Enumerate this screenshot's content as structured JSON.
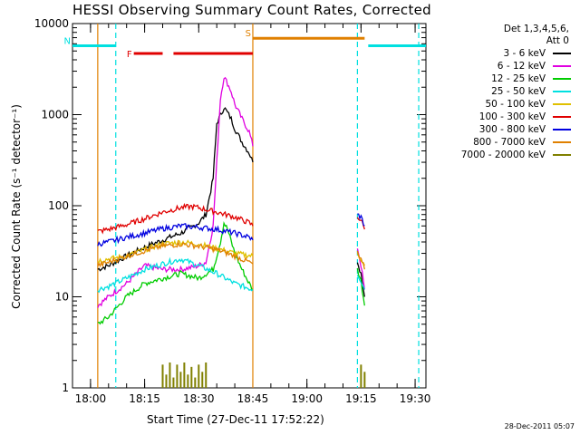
{
  "chart_data": {
    "type": "line",
    "title": "HESSI Observing Summary Count Rates, Corrected",
    "xlabel": "Start Time (27-Dec-11 17:52:22)",
    "ylabel": "Corrected Count Rate (s⁻¹ detector⁻¹)",
    "y_scale": "log",
    "ylim": [
      1,
      10000
    ],
    "xlim": [
      "17:55",
      "19:33"
    ],
    "x_ticks": [
      "18:00",
      "18:15",
      "18:30",
      "18:45",
      "19:00",
      "19:15",
      "19:30"
    ],
    "y_ticks": [
      "1",
      "10",
      "100",
      "1000",
      "10000"
    ],
    "legend": {
      "placement": "right",
      "title_line1": "Det 1,3,4,5,6,",
      "title_line2": "Att 0"
    },
    "series": [
      {
        "name": "3 - 6 keV",
        "color": "#000000",
        "x": [
          "18:02",
          "18:05",
          "18:10",
          "18:15",
          "18:20",
          "18:25",
          "18:28",
          "18:30",
          "18:32",
          "18:34",
          "18:35",
          "18:37",
          "18:38",
          "18:39",
          "18:40",
          "18:42",
          "18:44",
          "18:45",
          "19:14",
          "19:15",
          "19:16"
        ],
        "y": [
          20,
          22,
          28,
          35,
          42,
          50,
          58,
          65,
          80,
          200,
          800,
          1200,
          1050,
          900,
          700,
          500,
          380,
          300,
          25,
          18,
          10
        ]
      },
      {
        "name": "6 - 12 keV",
        "color": "#e000e0",
        "x": [
          "18:02",
          "18:05",
          "18:10",
          "18:15",
          "18:20",
          "18:25",
          "18:28",
          "18:30",
          "18:32",
          "18:34",
          "18:35",
          "18:36",
          "18:37",
          "18:38",
          "18:39",
          "18:40",
          "18:42",
          "18:44",
          "18:45",
          "19:14",
          "19:15",
          "19:16"
        ],
        "y": [
          8,
          10,
          14,
          22,
          20,
          20,
          21,
          22,
          24,
          60,
          300,
          1500,
          2600,
          2200,
          1800,
          1300,
          900,
          650,
          450,
          35,
          22,
          12
        ]
      },
      {
        "name": "12 - 25 keV",
        "color": "#00cc00",
        "x": [
          "18:02",
          "18:05",
          "18:10",
          "18:15",
          "18:20",
          "18:25",
          "18:30",
          "18:34",
          "18:36",
          "18:37",
          "18:38",
          "18:40",
          "18:42",
          "18:44",
          "18:45",
          "19:14",
          "19:15",
          "19:16"
        ],
        "y": [
          5,
          6,
          10,
          14,
          16,
          18,
          16,
          20,
          40,
          65,
          55,
          30,
          20,
          14,
          12,
          20,
          15,
          8
        ]
      },
      {
        "name": "25 - 50 keV",
        "color": "#00e0e0",
        "x": [
          "18:02",
          "18:05",
          "18:10",
          "18:15",
          "18:20",
          "18:25",
          "18:30",
          "18:35",
          "18:40",
          "18:45",
          "19:14",
          "19:15",
          "19:16"
        ],
        "y": [
          12,
          13,
          16,
          20,
          23,
          26,
          22,
          18,
          14,
          12,
          18,
          15,
          12
        ]
      },
      {
        "name": "50 - 100 keV",
        "color": "#e0c000",
        "x": [
          "18:02",
          "18:05",
          "18:10",
          "18:15",
          "18:20",
          "18:25",
          "18:30",
          "18:35",
          "18:40",
          "18:45",
          "19:14",
          "19:15",
          "19:16"
        ],
        "y": [
          25,
          26,
          28,
          33,
          38,
          40,
          38,
          34,
          30,
          28,
          30,
          26,
          22
        ]
      },
      {
        "name": "100 - 300 keV",
        "color": "#e00000",
        "x": [
          "18:02",
          "18:05",
          "18:10",
          "18:15",
          "18:20",
          "18:25",
          "18:28",
          "18:30",
          "18:35",
          "18:40",
          "18:44",
          "18:45",
          "19:14",
          "19:15",
          "19:16"
        ],
        "y": [
          52,
          55,
          62,
          72,
          85,
          95,
          98,
          95,
          85,
          75,
          65,
          60,
          75,
          70,
          55
        ]
      },
      {
        "name": "300 - 800 keV",
        "color": "#0000e0",
        "x": [
          "18:02",
          "18:05",
          "18:10",
          "18:15",
          "18:20",
          "18:25",
          "18:30",
          "18:35",
          "18:40",
          "18:44",
          "18:45",
          "19:14",
          "19:15",
          "19:16"
        ],
        "y": [
          38,
          40,
          45,
          50,
          56,
          60,
          58,
          55,
          50,
          45,
          42,
          80,
          75,
          60
        ]
      },
      {
        "name": "800 - 7000 keV",
        "color": "#e08000",
        "x": [
          "18:02",
          "18:05",
          "18:10",
          "18:15",
          "18:20",
          "18:25",
          "18:30",
          "18:35",
          "18:40",
          "18:44",
          "18:45",
          "19:14",
          "19:15",
          "19:16"
        ],
        "y": [
          22,
          24,
          28,
          32,
          36,
          38,
          36,
          33,
          28,
          24,
          23,
          30,
          25,
          20
        ]
      },
      {
        "name": "7000 - 20000 keV",
        "color": "#808000",
        "x": [
          "18:20",
          "18:21",
          "18:22",
          "18:23",
          "18:24",
          "18:25",
          "18:26",
          "18:27",
          "18:28",
          "18:29",
          "18:30",
          "18:31",
          "18:32",
          "19:15",
          "19:16"
        ],
        "y": [
          1.8,
          1.4,
          1.9,
          1.3,
          1.8,
          1.5,
          1.9,
          1.4,
          1.7,
          1.3,
          1.8,
          1.5,
          1.9,
          1.8,
          1.5
        ]
      }
    ],
    "annotations": [
      {
        "kind": "night",
        "label": "N",
        "color": "#00e0e0",
        "segments": [
          [
            "17:55",
            "18:07"
          ],
          [
            "19:17",
            "19:33"
          ]
        ],
        "level": 5700
      },
      {
        "kind": "flare",
        "label": "F",
        "color": "#e00000",
        "segments": [
          [
            "18:12",
            "18:20"
          ],
          [
            "18:23",
            "18:45"
          ]
        ],
        "level": 4700
      },
      {
        "kind": "saa",
        "label": "S",
        "color": "#e08000",
        "segments": [
          [
            "18:45",
            "19:16"
          ]
        ],
        "level": 6900
      }
    ],
    "vertical_lines": [
      {
        "at": "18:02",
        "color": "#e08000",
        "style": "solid"
      },
      {
        "at": "18:45",
        "color": "#e08000",
        "style": "solid"
      },
      {
        "at": "18:07",
        "color": "#00e0e0",
        "style": "dashed"
      },
      {
        "at": "19:14",
        "color": "#00e0e0",
        "style": "dashed"
      },
      {
        "at": "19:31",
        "color": "#00e0e0",
        "style": "dashed"
      }
    ],
    "data_gap": [
      "18:45",
      "19:14"
    ]
  },
  "footer": {
    "timestamp": "28-Dec-2011 05:07"
  }
}
